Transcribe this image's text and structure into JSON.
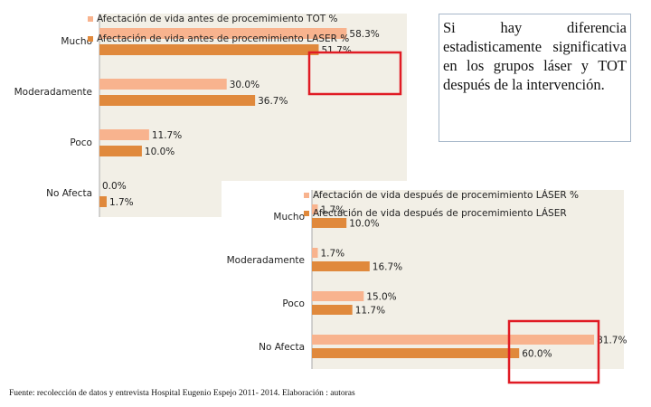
{
  "chart_data": [
    {
      "type": "bar",
      "orientation": "horizontal",
      "categories": [
        "Mucho",
        "Moderadamente",
        "Poco",
        "No Afecta"
      ],
      "series": [
        {
          "name": "Afectación de vida antes de procemimiento TOT %",
          "color": "#f8b38e",
          "values": [
            58.3,
            30.0,
            11.7,
            0.0
          ],
          "value_labels": [
            "58.3%",
            "30.0%",
            "11.7%",
            "0.0%"
          ]
        },
        {
          "name": "Afectación de vida antes de procemimiento LASER %",
          "color": "#e0893c",
          "values": [
            51.7,
            36.7,
            10.0,
            1.7
          ],
          "value_labels": [
            "51.7%",
            "36.7%",
            "10.0%",
            "1.7%"
          ]
        }
      ]
    },
    {
      "type": "bar",
      "orientation": "horizontal",
      "categories": [
        "Mucho",
        "Moderadamente",
        "Poco",
        "No Afecta"
      ],
      "series": [
        {
          "name": "Afectación de vida después de procemimiento LÁSER %",
          "color": "#f8b38e",
          "values": [
            1.7,
            1.7,
            15.0,
            81.7
          ],
          "value_labels": [
            "1.7%",
            "1.7%",
            "15.0%",
            "81.7%"
          ]
        },
        {
          "name": "Afectación de vida después de procemimiento LÁSER",
          "color": "#e0893c",
          "values": [
            10.0,
            16.7,
            11.7,
            60.0
          ],
          "value_labels": [
            "10.0%",
            "16.7%",
            "11.7%",
            "60.0%"
          ]
        }
      ]
    }
  ],
  "text_box": "Si hay diferencia estadisticamente significativa en los grupos láser y TOT después de la intervención.",
  "footer": "Fuente: recolección de datos y entrevista  Hospital Eugenio Espejo 2011- 2014. Elaboración : autoras"
}
